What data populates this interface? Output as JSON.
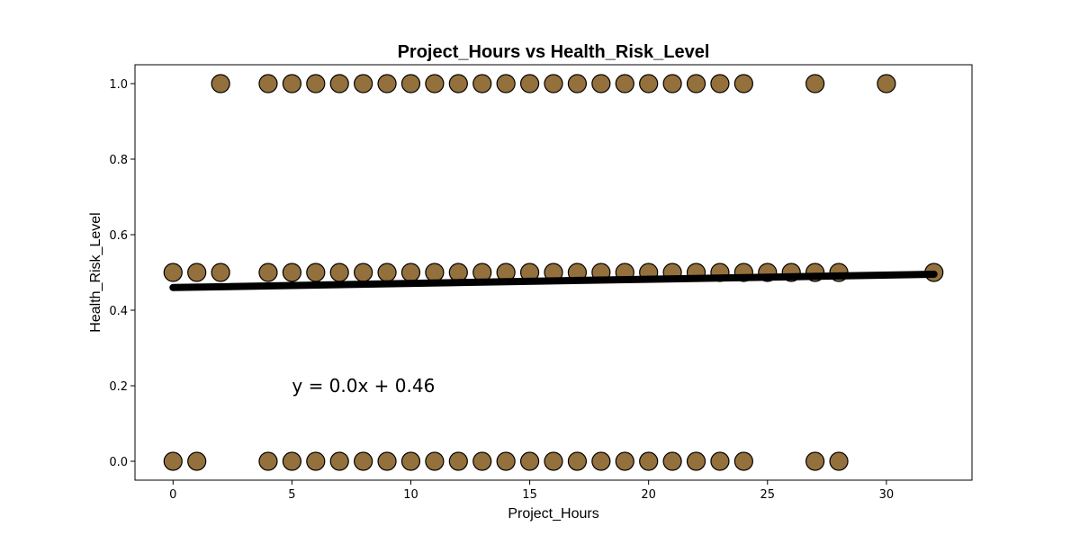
{
  "chart_data": {
    "type": "scatter",
    "title": "Project_Hours vs Health_Risk_Level",
    "xlabel": "Project_Hours",
    "ylabel": "Health_Risk_Level",
    "xlim": [
      -1.6,
      33.6
    ],
    "ylim": [
      -0.05,
      1.05
    ],
    "x_ticks": [
      0,
      5,
      10,
      15,
      20,
      25,
      30
    ],
    "y_ticks": [
      0.0,
      0.2,
      0.4,
      0.6,
      0.8,
      1.0
    ],
    "x_tick_labels": [
      "0",
      "5",
      "10",
      "15",
      "20",
      "25",
      "30"
    ],
    "y_tick_labels": [
      "0.0",
      "0.2",
      "0.4",
      "0.6",
      "0.8",
      "1.0"
    ],
    "grid": false,
    "marker_color": "#94703c",
    "marker_edge_color": "#000000",
    "series": [
      {
        "points": [
          [
            2,
            1
          ],
          [
            4,
            1
          ],
          [
            5,
            1
          ],
          [
            6,
            1
          ],
          [
            7,
            1
          ],
          [
            8,
            1
          ],
          [
            9,
            1
          ],
          [
            10,
            1
          ],
          [
            11,
            1
          ],
          [
            12,
            1
          ],
          [
            13,
            1
          ],
          [
            14,
            1
          ],
          [
            15,
            1
          ],
          [
            16,
            1
          ],
          [
            17,
            1
          ],
          [
            18,
            1
          ],
          [
            19,
            1
          ],
          [
            20,
            1
          ],
          [
            21,
            1
          ],
          [
            22,
            1
          ],
          [
            23,
            1
          ],
          [
            24,
            1
          ],
          [
            27,
            1
          ],
          [
            30,
            1
          ],
          [
            0,
            0.5
          ],
          [
            1,
            0.5
          ],
          [
            2,
            0.5
          ],
          [
            4,
            0.5
          ],
          [
            5,
            0.5
          ],
          [
            6,
            0.5
          ],
          [
            7,
            0.5
          ],
          [
            8,
            0.5
          ],
          [
            9,
            0.5
          ],
          [
            10,
            0.5
          ],
          [
            11,
            0.5
          ],
          [
            12,
            0.5
          ],
          [
            13,
            0.5
          ],
          [
            14,
            0.5
          ],
          [
            15,
            0.5
          ],
          [
            16,
            0.5
          ],
          [
            17,
            0.5
          ],
          [
            18,
            0.5
          ],
          [
            19,
            0.5
          ],
          [
            20,
            0.5
          ],
          [
            21,
            0.5
          ],
          [
            22,
            0.5
          ],
          [
            23,
            0.5
          ],
          [
            24,
            0.5
          ],
          [
            25,
            0.5
          ],
          [
            26,
            0.5
          ],
          [
            27,
            0.5
          ],
          [
            28,
            0.5
          ],
          [
            32,
            0.5
          ],
          [
            0,
            0
          ],
          [
            1,
            0
          ],
          [
            4,
            0
          ],
          [
            5,
            0
          ],
          [
            6,
            0
          ],
          [
            7,
            0
          ],
          [
            8,
            0
          ],
          [
            9,
            0
          ],
          [
            10,
            0
          ],
          [
            11,
            0
          ],
          [
            12,
            0
          ],
          [
            13,
            0
          ],
          [
            14,
            0
          ],
          [
            15,
            0
          ],
          [
            16,
            0
          ],
          [
            17,
            0
          ],
          [
            18,
            0
          ],
          [
            19,
            0
          ],
          [
            20,
            0
          ],
          [
            21,
            0
          ],
          [
            22,
            0
          ],
          [
            23,
            0
          ],
          [
            24,
            0
          ],
          [
            27,
            0
          ],
          [
            28,
            0
          ]
        ]
      }
    ],
    "trendline": {
      "slope": 0.0011,
      "intercept": 0.46,
      "x_range": [
        0,
        32
      ],
      "color": "#000000"
    },
    "annotation": {
      "text": "y = 0.0x + 0.46",
      "x": 5,
      "y": 0.2
    }
  }
}
